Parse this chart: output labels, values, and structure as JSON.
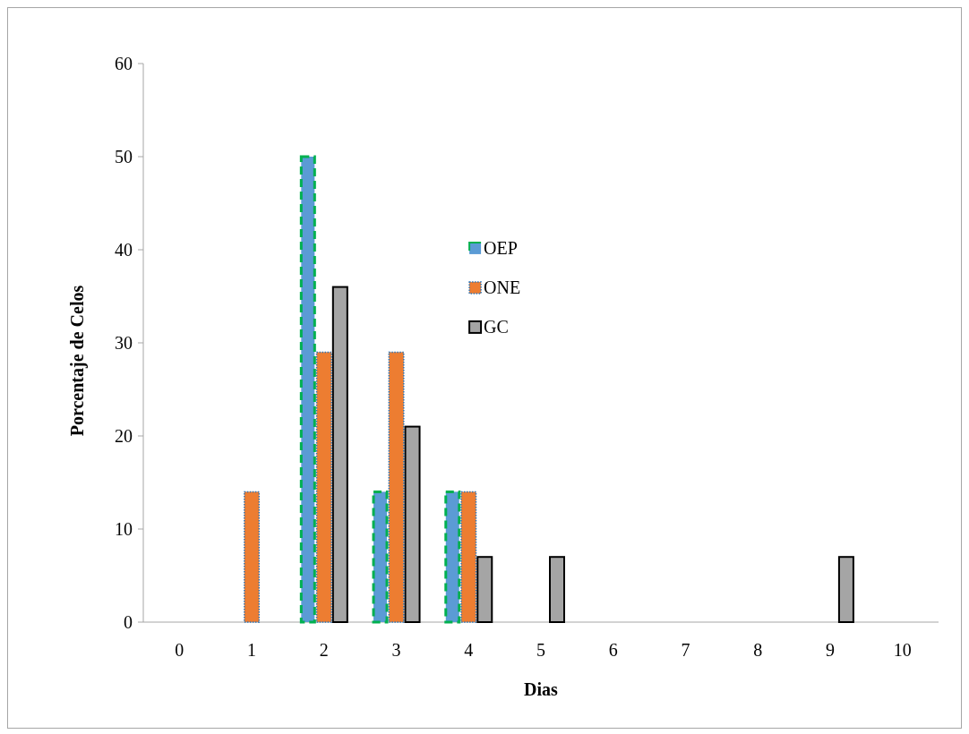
{
  "chart_data": {
    "type": "bar",
    "xlabel": "Dias",
    "ylabel": "Porcentaje de Celos",
    "categories": [
      "0",
      "1",
      "2",
      "3",
      "4",
      "5",
      "6",
      "7",
      "8",
      "9",
      "10"
    ],
    "series": [
      {
        "name": "OEP",
        "color": "#5b9bd5",
        "values": [
          0,
          0,
          50,
          14,
          14,
          0,
          0,
          0,
          0,
          0,
          0
        ]
      },
      {
        "name": "ONE",
        "color": "#ed7d31",
        "values": [
          0,
          14,
          29,
          29,
          14,
          0,
          0,
          0,
          0,
          0,
          0
        ]
      },
      {
        "name": "GC",
        "color": "#a5a5a5",
        "values": [
          0,
          0,
          36,
          21,
          7,
          7,
          0,
          0,
          0,
          7,
          0
        ]
      }
    ],
    "ylim": [
      0,
      60
    ],
    "yticks": [
      0,
      10,
      20,
      30,
      40,
      50,
      60
    ],
    "grid": false,
    "legend": "top"
  }
}
